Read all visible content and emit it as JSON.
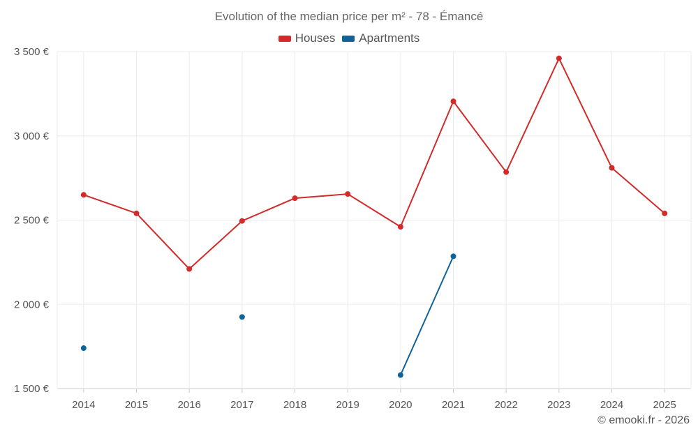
{
  "chart_data": {
    "type": "line",
    "title": "Evolution of the median price per m² - 78 - Émancé",
    "categories": [
      "2014",
      "2015",
      "2016",
      "2017",
      "2018",
      "2019",
      "2020",
      "2021",
      "2022",
      "2023",
      "2024",
      "2025"
    ],
    "series": [
      {
        "name": "Houses",
        "color": "#d32a2a",
        "values": [
          2650,
          2540,
          2210,
          2495,
          2630,
          2655,
          2460,
          3205,
          2785,
          3460,
          2810,
          2540
        ]
      },
      {
        "name": "Apartments",
        "color": "#0e6496",
        "values": [
          1740,
          null,
          null,
          1925,
          null,
          null,
          1580,
          2285,
          null,
          null,
          null,
          null
        ]
      }
    ],
    "ylim": [
      1500,
      3500
    ],
    "yticks": [
      1500,
      2000,
      2500,
      3000,
      3500
    ],
    "ytick_labels": [
      "1 500 €",
      "2 000 €",
      "2 500 €",
      "3 000 €",
      "3 500 €"
    ],
    "xlabel": "",
    "ylabel": "",
    "legend_position": "top-center",
    "grid": true
  },
  "footer": {
    "credit": "© emooki.fr - 2026"
  }
}
